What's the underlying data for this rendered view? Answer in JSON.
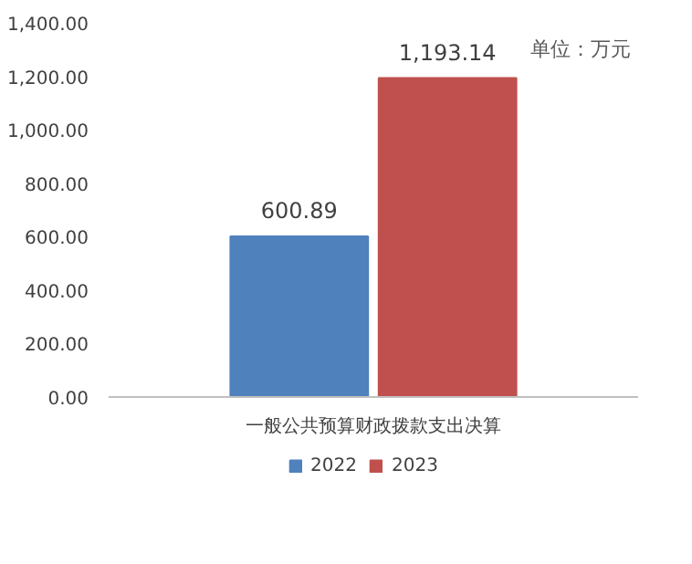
{
  "chart_data": {
    "type": "bar",
    "categories": [
      "一般公共预算财政拨款支出决算"
    ],
    "series": [
      {
        "name": "2022",
        "color": "#4f81bd",
        "values": [
          600.89
        ],
        "value_labels": [
          "600.89"
        ]
      },
      {
        "name": "2023",
        "color": "#c0504d",
        "values": [
          1193.14
        ],
        "value_labels": [
          "1,193.14"
        ]
      }
    ],
    "ylim": [
      0,
      1400
    ],
    "yticks": [
      {
        "value": 0,
        "label": "0.00"
      },
      {
        "value": 200,
        "label": "200.00"
      },
      {
        "value": 400,
        "label": "400.00"
      },
      {
        "value": 600,
        "label": "600.00"
      },
      {
        "value": 800,
        "label": "800.00"
      },
      {
        "value": 1000,
        "label": "1,000.00"
      },
      {
        "value": 1200,
        "label": "1,200.00"
      },
      {
        "value": 1400,
        "label": "1,400.00"
      }
    ],
    "annotations": [
      "单位：万元"
    ],
    "grid": false,
    "legend": "bottom"
  }
}
